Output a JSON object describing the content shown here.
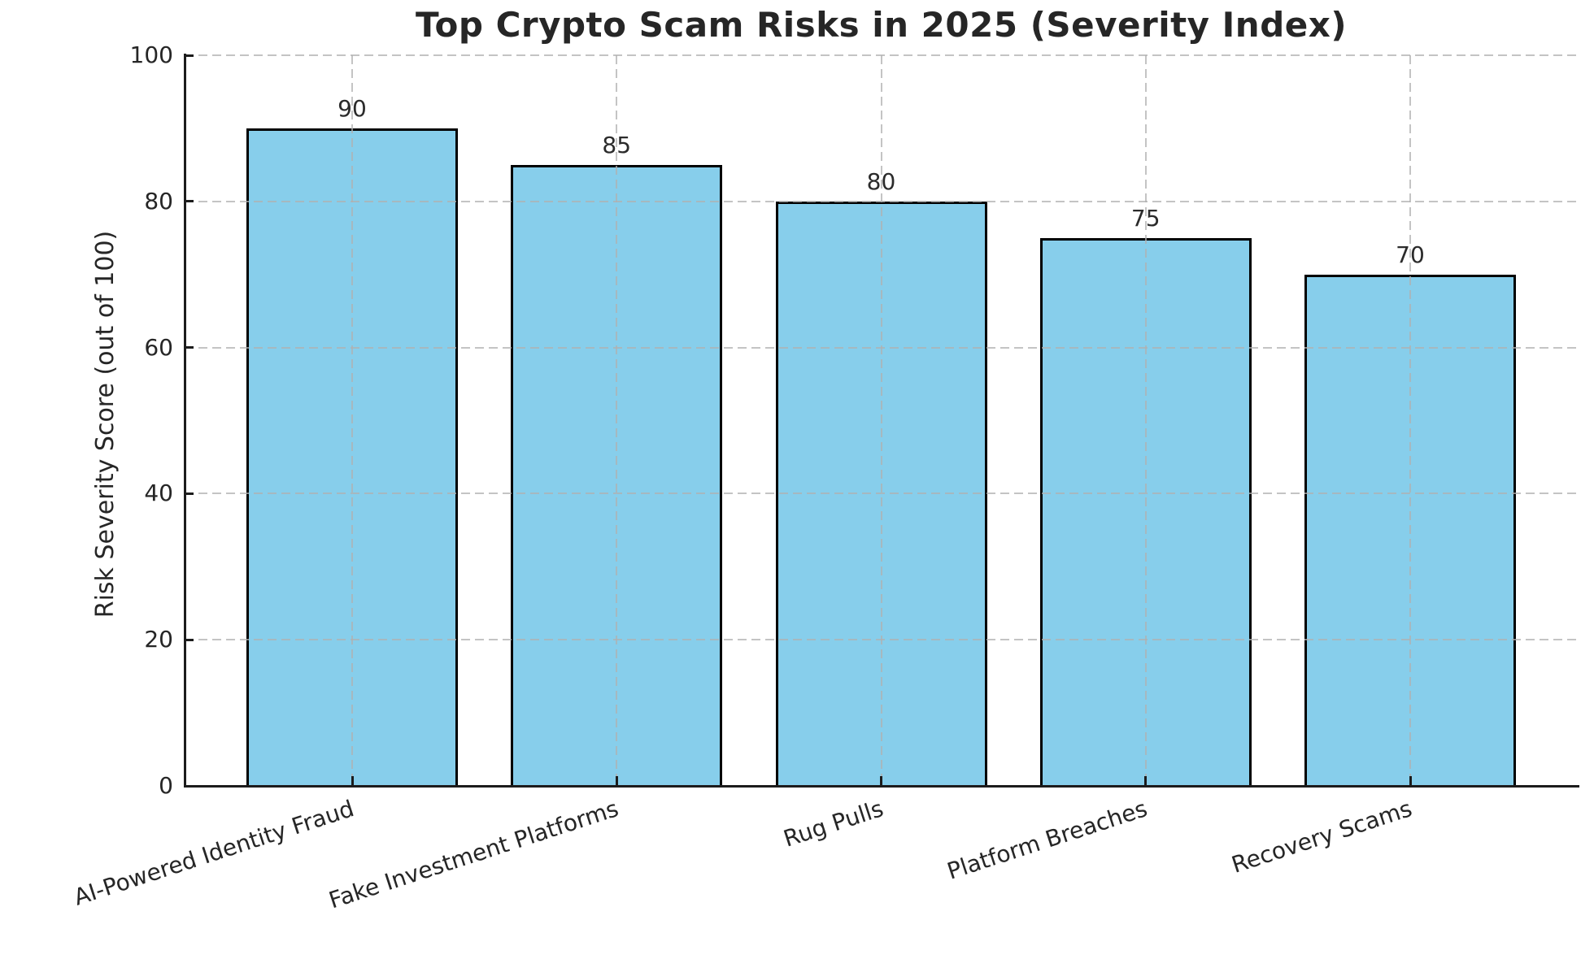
{
  "figure": {
    "background_color": "#ffffff"
  },
  "chart_data": {
    "type": "bar",
    "title": "Top Crypto Scam Risks in 2025 (Severity Index)",
    "xlabel": "",
    "ylabel": "Risk Severity Score (out of 100)",
    "categories": [
      "AI-Powered Identity Fraud",
      "Fake Investment Platforms",
      "Rug Pulls",
      "Platform Breaches",
      "Recovery Scams"
    ],
    "values": [
      90,
      85,
      80,
      75,
      70
    ],
    "value_labels": [
      "90",
      "85",
      "80",
      "75",
      "70"
    ],
    "ylim": [
      0,
      100
    ],
    "yticks": [
      0,
      20,
      40,
      60,
      80,
      100
    ],
    "legend_position": "none",
    "grid": "both-axes dashed, drawn over bars",
    "x_tick_rotation_deg": 18,
    "colors": {
      "bar_fill": "#87CEEB",
      "bar_edge": "#000000",
      "spine": "#1c1c1c",
      "grid": "#b0b0b0",
      "text": "#262626"
    }
  }
}
